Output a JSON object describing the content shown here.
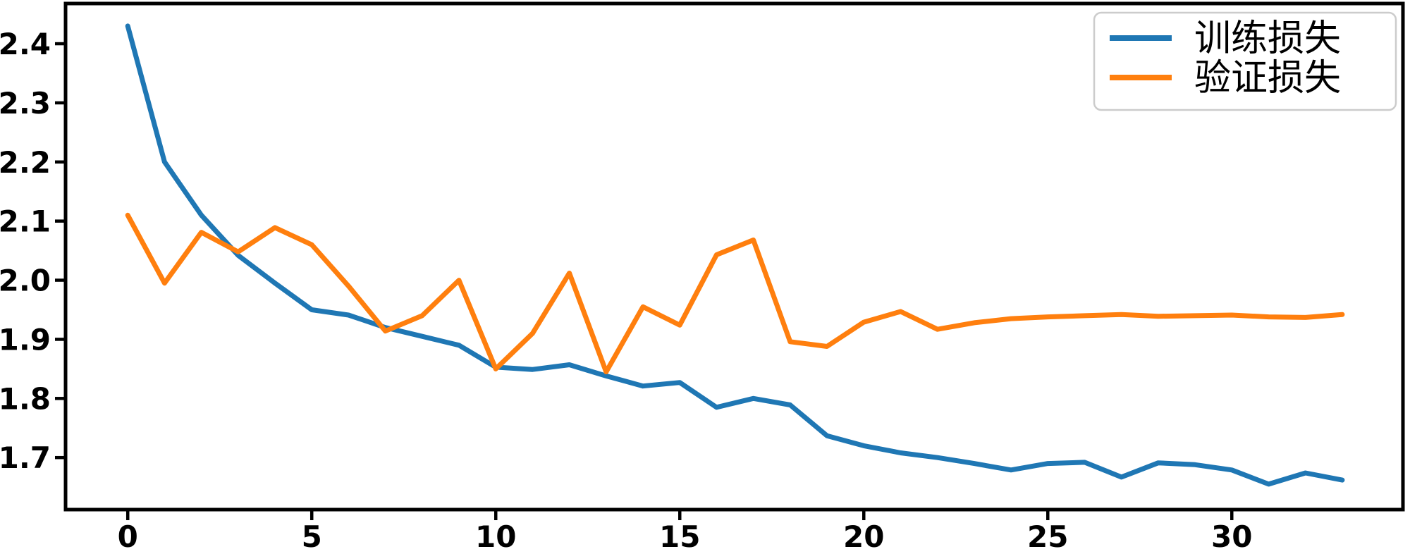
{
  "chart_data": {
    "type": "line",
    "title": "",
    "xlabel": "",
    "ylabel": "",
    "grid": false,
    "background": "#ffffff",
    "axis_color": "#000000",
    "legend_position": "upper right",
    "xlim": [
      -1.69,
      34.65
    ],
    "ylim": [
      1.612,
      2.468
    ],
    "xticks": [
      "0",
      "5",
      "10",
      "15",
      "20",
      "25",
      "30"
    ],
    "xtick_values": [
      0,
      5,
      10,
      15,
      20,
      25,
      30
    ],
    "yticks": [
      "2.4",
      "2.3",
      "2.2",
      "2.1",
      "2.0",
      "1.9",
      "1.8",
      "1.7"
    ],
    "ytick_values": [
      2.4,
      2.3,
      2.2,
      2.1,
      2.0,
      1.9,
      1.8,
      1.7
    ],
    "x": [
      0,
      1,
      2,
      3,
      4,
      5,
      6,
      7,
      8,
      9,
      10,
      11,
      12,
      13,
      14,
      15,
      16,
      17,
      18,
      19,
      20,
      21,
      22,
      23,
      24,
      25,
      26,
      27,
      28,
      29,
      30,
      31,
      32,
      33
    ],
    "series": [
      {
        "name": "训练损失",
        "color": "#1f77b4",
        "values": [
          2.43,
          2.2,
          2.11,
          2.042,
          1.995,
          1.95,
          1.941,
          1.92,
          1.905,
          1.89,
          1.853,
          1.849,
          1.857,
          1.838,
          1.821,
          1.827,
          1.785,
          1.8,
          1.789,
          1.737,
          1.72,
          1.708,
          1.7,
          1.69,
          1.679,
          1.69,
          1.692,
          1.667,
          1.691,
          1.688,
          1.679,
          1.655,
          1.674,
          1.662
        ]
      },
      {
        "name": "验证损失",
        "color": "#ff7f0e",
        "values": [
          2.11,
          1.995,
          2.081,
          2.048,
          2.089,
          2.06,
          1.99,
          1.914,
          1.94,
          2.0,
          1.85,
          1.91,
          2.012,
          1.845,
          1.955,
          1.924,
          2.043,
          2.068,
          1.896,
          1.888,
          1.929,
          1.947,
          1.917,
          1.928,
          1.935,
          1.938,
          1.94,
          1.942,
          1.939,
          1.94,
          1.941,
          1.938,
          1.937,
          1.942
        ]
      }
    ]
  }
}
